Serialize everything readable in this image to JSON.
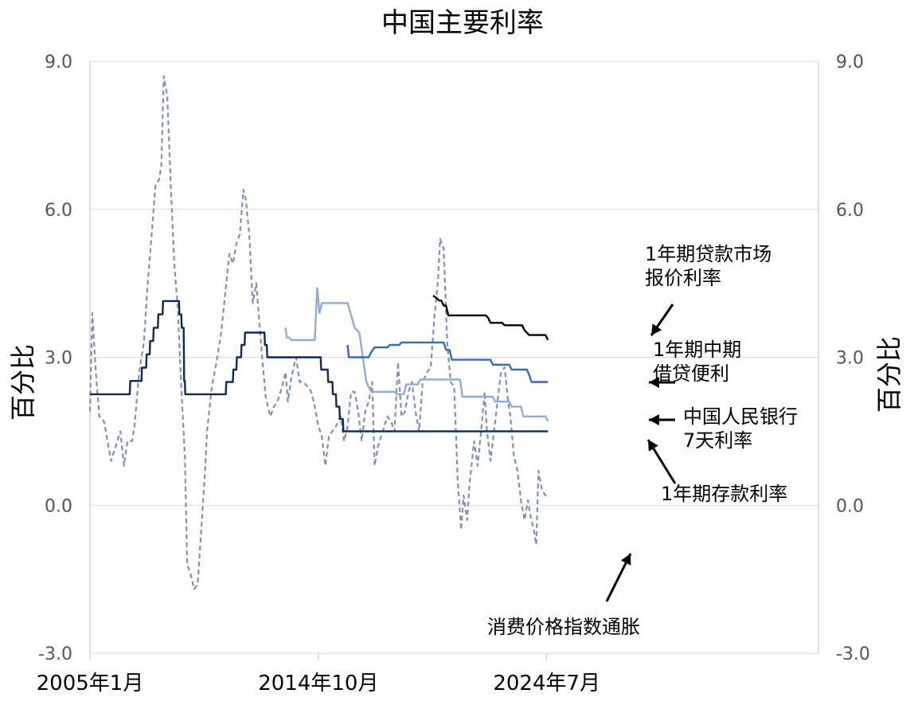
{
  "chart_data": {
    "type": "line",
    "title": "中国主要利率",
    "ylabel_left": "百分比",
    "ylabel_right": "百分比",
    "xlabel": "",
    "ylim": [
      -3.0,
      9.0
    ],
    "yticks": [
      "-3.0",
      "0.0",
      "3.0",
      "6.0",
      "9.0"
    ],
    "y_tick_values": [
      -3,
      0,
      3,
      6,
      9
    ],
    "xlim": [
      2005.0,
      2036.1
    ],
    "x_tick_labels": [
      "2005年1月",
      "2014年10月",
      "2024年7月"
    ],
    "x_tick_values": [
      2005.0,
      2014.75,
      2024.5
    ],
    "grid": true,
    "series": [
      {
        "name": "消费价格指数通胀",
        "color": "#7f93b0",
        "dash": true,
        "points": [
          [
            2005.0,
            1.9
          ],
          [
            2005.1,
            3.9
          ],
          [
            2005.25,
            2.7
          ],
          [
            2005.4,
            1.8
          ],
          [
            2005.6,
            1.7
          ],
          [
            2005.75,
            1.3
          ],
          [
            2005.9,
            0.9
          ],
          [
            2006.1,
            1.2
          ],
          [
            2006.3,
            1.5
          ],
          [
            2006.45,
            0.8
          ],
          [
            2006.6,
            1.3
          ],
          [
            2006.8,
            1.3
          ],
          [
            2006.9,
            1.6
          ],
          [
            2007.1,
            2.7
          ],
          [
            2007.3,
            3.3
          ],
          [
            2007.45,
            4.4
          ],
          [
            2007.65,
            5.6
          ],
          [
            2007.8,
            6.5
          ],
          [
            2007.95,
            6.6
          ],
          [
            2008.05,
            6.9
          ],
          [
            2008.15,
            8.7
          ],
          [
            2008.3,
            8.3
          ],
          [
            2008.45,
            6.5
          ],
          [
            2008.6,
            4.9
          ],
          [
            2008.75,
            4.0
          ],
          [
            2008.9,
            2.4
          ],
          [
            2009.05,
            1.0
          ],
          [
            2009.15,
            -1.2
          ],
          [
            2009.3,
            -1.4
          ],
          [
            2009.45,
            -1.7
          ],
          [
            2009.6,
            -1.6
          ],
          [
            2009.75,
            -0.5
          ],
          [
            2009.9,
            0.6
          ],
          [
            2010.0,
            1.5
          ],
          [
            2010.2,
            2.4
          ],
          [
            2010.4,
            2.9
          ],
          [
            2010.6,
            3.5
          ],
          [
            2010.8,
            4.4
          ],
          [
            2010.95,
            5.1
          ],
          [
            2011.1,
            4.9
          ],
          [
            2011.25,
            5.3
          ],
          [
            2011.4,
            5.5
          ],
          [
            2011.55,
            6.4
          ],
          [
            2011.65,
            6.2
          ],
          [
            2011.8,
            5.5
          ],
          [
            2011.95,
            4.1
          ],
          [
            2012.1,
            4.5
          ],
          [
            2012.25,
            3.6
          ],
          [
            2012.35,
            3.0
          ],
          [
            2012.5,
            2.2
          ],
          [
            2012.7,
            1.8
          ],
          [
            2012.85,
            2.0
          ],
          [
            2013.0,
            2.1
          ],
          [
            2013.2,
            2.4
          ],
          [
            2013.35,
            2.7
          ],
          [
            2013.45,
            2.1
          ],
          [
            2013.6,
            2.6
          ],
          [
            2013.8,
            3.0
          ],
          [
            2013.95,
            2.5
          ],
          [
            2014.1,
            2.5
          ],
          [
            2014.3,
            2.4
          ],
          [
            2014.45,
            2.3
          ],
          [
            2014.6,
            2.0
          ],
          [
            2014.75,
            1.6
          ],
          [
            2014.9,
            1.4
          ],
          [
            2015.05,
            0.8
          ],
          [
            2015.2,
            1.4
          ],
          [
            2015.35,
            1.5
          ],
          [
            2015.5,
            1.6
          ],
          [
            2015.7,
            1.8
          ],
          [
            2015.85,
            1.3
          ],
          [
            2016.0,
            1.6
          ],
          [
            2016.15,
            2.3
          ],
          [
            2016.3,
            2.3
          ],
          [
            2016.45,
            1.9
          ],
          [
            2016.6,
            1.3
          ],
          [
            2016.75,
            1.9
          ],
          [
            2016.9,
            2.1
          ],
          [
            2017.05,
            2.5
          ],
          [
            2017.15,
            0.8
          ],
          [
            2017.3,
            1.2
          ],
          [
            2017.5,
            1.5
          ],
          [
            2017.7,
            1.8
          ],
          [
            2017.85,
            1.7
          ],
          [
            2018.0,
            1.5
          ],
          [
            2018.15,
            2.9
          ],
          [
            2018.3,
            1.8
          ],
          [
            2018.45,
            1.9
          ],
          [
            2018.6,
            2.3
          ],
          [
            2018.75,
            2.5
          ],
          [
            2018.9,
            1.9
          ],
          [
            2019.05,
            1.5
          ],
          [
            2019.2,
            2.5
          ],
          [
            2019.4,
            2.7
          ],
          [
            2019.55,
            2.8
          ],
          [
            2019.7,
            3.8
          ],
          [
            2019.85,
            4.5
          ],
          [
            2019.95,
            5.4
          ],
          [
            2020.1,
            5.2
          ],
          [
            2020.25,
            3.3
          ],
          [
            2020.4,
            2.5
          ],
          [
            2020.55,
            2.4
          ],
          [
            2020.7,
            0.5
          ],
          [
            2020.85,
            -0.5
          ],
          [
            2020.95,
            0.2
          ],
          [
            2021.1,
            -0.3
          ],
          [
            2021.2,
            0.4
          ],
          [
            2021.4,
            1.3
          ],
          [
            2021.55,
            0.8
          ],
          [
            2021.7,
            1.5
          ],
          [
            2021.85,
            2.3
          ],
          [
            2021.95,
            1.5
          ],
          [
            2022.1,
            0.9
          ],
          [
            2022.25,
            1.5
          ],
          [
            2022.4,
            2.1
          ],
          [
            2022.55,
            2.7
          ],
          [
            2022.7,
            2.8
          ],
          [
            2022.85,
            2.1
          ],
          [
            2022.95,
            1.8
          ],
          [
            2023.1,
            1.0
          ],
          [
            2023.25,
            0.7
          ],
          [
            2023.4,
            0.1
          ],
          [
            2023.55,
            -0.3
          ],
          [
            2023.7,
            0.1
          ],
          [
            2023.8,
            -0.2
          ],
          [
            2023.95,
            -0.5
          ],
          [
            2024.05,
            -0.8
          ],
          [
            2024.15,
            0.7
          ],
          [
            2024.3,
            0.3
          ],
          [
            2024.45,
            0.2
          ],
          [
            2024.55,
            0.2
          ]
        ]
      },
      {
        "name": "1年期存款利率",
        "color": "#0d2a57",
        "dash": false,
        "points": [
          [
            2005.0,
            2.25
          ],
          [
            2006.7,
            2.25
          ],
          [
            2006.72,
            2.52
          ],
          [
            2007.2,
            2.52
          ],
          [
            2007.22,
            2.79
          ],
          [
            2007.4,
            2.79
          ],
          [
            2007.42,
            3.06
          ],
          [
            2007.55,
            3.06
          ],
          [
            2007.57,
            3.33
          ],
          [
            2007.7,
            3.33
          ],
          [
            2007.72,
            3.6
          ],
          [
            2007.9,
            3.6
          ],
          [
            2007.92,
            3.87
          ],
          [
            2008.1,
            3.87
          ],
          [
            2008.12,
            4.14
          ],
          [
            2008.8,
            4.14
          ],
          [
            2008.82,
            3.87
          ],
          [
            2008.9,
            3.87
          ],
          [
            2008.92,
            3.6
          ],
          [
            2009.0,
            3.6
          ],
          [
            2009.02,
            2.52
          ],
          [
            2009.05,
            2.52
          ],
          [
            2009.07,
            2.25
          ],
          [
            2010.8,
            2.25
          ],
          [
            2010.82,
            2.5
          ],
          [
            2011.1,
            2.5
          ],
          [
            2011.12,
            2.75
          ],
          [
            2011.25,
            2.75
          ],
          [
            2011.27,
            3.0
          ],
          [
            2011.45,
            3.0
          ],
          [
            2011.47,
            3.25
          ],
          [
            2011.6,
            3.25
          ],
          [
            2011.62,
            3.5
          ],
          [
            2012.45,
            3.5
          ],
          [
            2012.47,
            3.25
          ],
          [
            2012.55,
            3.25
          ],
          [
            2012.57,
            3.0
          ],
          [
            2014.85,
            3.0
          ],
          [
            2014.87,
            2.75
          ],
          [
            2015.15,
            2.75
          ],
          [
            2015.17,
            2.5
          ],
          [
            2015.35,
            2.5
          ],
          [
            2015.37,
            2.25
          ],
          [
            2015.5,
            2.25
          ],
          [
            2015.52,
            2.0
          ],
          [
            2015.65,
            2.0
          ],
          [
            2015.67,
            1.75
          ],
          [
            2015.8,
            1.75
          ],
          [
            2015.82,
            1.5
          ],
          [
            2024.55,
            1.5
          ]
        ]
      },
      {
        "name": "中国人民银行7天利率",
        "color": "#8fabd8",
        "dash": false,
        "points": [
          [
            2013.35,
            3.6
          ],
          [
            2013.4,
            3.4
          ],
          [
            2013.5,
            3.4
          ],
          [
            2013.6,
            3.35
          ],
          [
            2014.6,
            3.35
          ],
          [
            2014.7,
            4.4
          ],
          [
            2014.8,
            3.9
          ],
          [
            2014.9,
            4.1
          ],
          [
            2016.0,
            4.1
          ],
          [
            2016.3,
            3.6
          ],
          [
            2016.5,
            3.5
          ],
          [
            2016.8,
            2.5
          ],
          [
            2017.0,
            2.3
          ],
          [
            2018.0,
            2.3
          ],
          [
            2018.1,
            2.25
          ],
          [
            2018.4,
            2.25
          ],
          [
            2018.5,
            2.45
          ],
          [
            2019.0,
            2.45
          ],
          [
            2019.1,
            2.55
          ],
          [
            2020.8,
            2.55
          ],
          [
            2020.9,
            2.2
          ],
          [
            2022.2,
            2.2
          ],
          [
            2022.3,
            2.1
          ],
          [
            2022.9,
            2.1
          ],
          [
            2023.0,
            2.0
          ],
          [
            2023.4,
            2.0
          ],
          [
            2023.5,
            1.8
          ],
          [
            2024.45,
            1.8
          ],
          [
            2024.55,
            1.7
          ]
        ]
      },
      {
        "name": "1年期中期借贷便利",
        "color": "#3a68b8",
        "dash": false,
        "points": [
          [
            2016.0,
            3.25
          ],
          [
            2016.05,
            3.0
          ],
          [
            2016.9,
            3.0
          ],
          [
            2017.0,
            3.1
          ],
          [
            2017.15,
            3.2
          ],
          [
            2017.7,
            3.2
          ],
          [
            2017.8,
            3.25
          ],
          [
            2018.2,
            3.25
          ],
          [
            2018.3,
            3.3
          ],
          [
            2020.1,
            3.3
          ],
          [
            2020.2,
            3.15
          ],
          [
            2020.35,
            3.15
          ],
          [
            2020.45,
            2.95
          ],
          [
            2022.1,
            2.95
          ],
          [
            2022.2,
            2.85
          ],
          [
            2022.9,
            2.85
          ],
          [
            2023.0,
            2.75
          ],
          [
            2023.65,
            2.75
          ],
          [
            2023.75,
            2.65
          ],
          [
            2023.85,
            2.5
          ],
          [
            2024.55,
            2.5
          ]
        ]
      },
      {
        "name": "1年期贷款市场报价利率",
        "color": "#000000",
        "dash": false,
        "points": [
          [
            2019.65,
            4.25
          ],
          [
            2019.8,
            4.2
          ],
          [
            2019.9,
            4.15
          ],
          [
            2020.0,
            4.15
          ],
          [
            2020.1,
            4.05
          ],
          [
            2020.2,
            4.05
          ],
          [
            2020.3,
            3.85
          ],
          [
            2021.9,
            3.85
          ],
          [
            2022.0,
            3.8
          ],
          [
            2022.1,
            3.7
          ],
          [
            2022.6,
            3.7
          ],
          [
            2022.7,
            3.65
          ],
          [
            2023.45,
            3.65
          ],
          [
            2023.55,
            3.55
          ],
          [
            2023.75,
            3.45
          ],
          [
            2024.45,
            3.45
          ],
          [
            2024.55,
            3.35
          ]
        ]
      }
    ],
    "annotations": [
      {
        "key": "lpr",
        "lines": [
          "1年期贷款市场",
          "报价利率"
        ]
      },
      {
        "key": "mlf",
        "lines": [
          "1年期中期",
          "借贷便利"
        ]
      },
      {
        "key": "pboc",
        "lines": [
          "中国人民银行",
          "7天利率"
        ]
      },
      {
        "key": "deposit",
        "lines": [
          "1年期存款利率"
        ]
      },
      {
        "key": "cpi",
        "lines": [
          "消费价格指数通胀"
        ]
      }
    ]
  }
}
